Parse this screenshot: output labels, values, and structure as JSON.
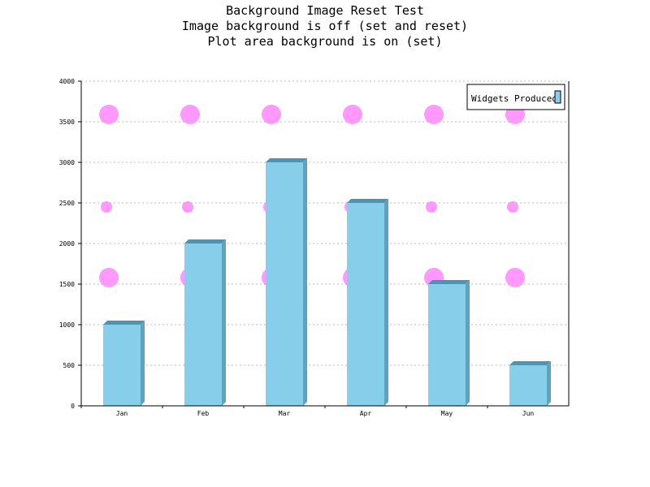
{
  "chart_data": {
    "type": "bar",
    "title_lines": [
      "Background Image Reset Test",
      "Image background is off (set and reset)",
      "Plot area background is on (set)"
    ],
    "categories": [
      "Jan",
      "Feb",
      "Mar",
      "Apr",
      "May",
      "Jun"
    ],
    "series": [
      {
        "name": "Widgets Produced",
        "values": [
          1000,
          2000,
          3000,
          2500,
          1500,
          500
        ]
      }
    ],
    "ylim": [
      0,
      4000
    ],
    "yticks": [
      "0",
      "500",
      "1000",
      "1500",
      "2000",
      "2500",
      "3000",
      "3500",
      "4000"
    ],
    "grid": true,
    "legend_position": "top-right",
    "colors": {
      "bar_face": "#87CEEB",
      "bar_side": "#5BA3C0",
      "bar_top": "#4E94B2",
      "grid": "#bbbbbb",
      "plot_pattern": "#FF99FF",
      "axis": "#000000"
    }
  }
}
